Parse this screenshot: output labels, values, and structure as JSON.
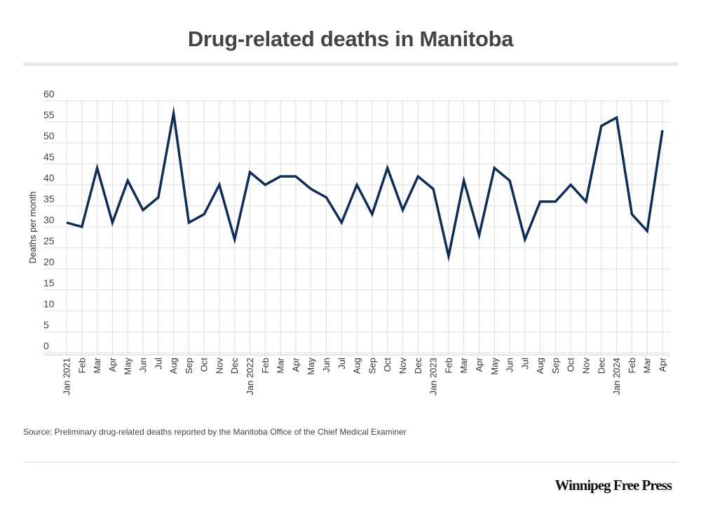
{
  "title": "Drug-related deaths in Manitoba",
  "source": "Source: Preliminary drug-related deaths reported by the Manitoba Office of the Chief Medical Examiner",
  "logo": "Winnipeg Free Press",
  "colors": {
    "line": "#0d2c56",
    "grid": "#dddddd",
    "text": "#444444"
  },
  "chart_data": {
    "type": "line",
    "title": "Drug-related deaths in Manitoba",
    "xlabel": "",
    "ylabel": "Deaths per month",
    "ylim": [
      0,
      60
    ],
    "yticks": [
      "0",
      "5",
      "10",
      "15",
      "20",
      "25",
      "30",
      "35",
      "40",
      "45",
      "50",
      "55",
      "60"
    ],
    "grid": true,
    "categories": [
      "Jan 2021",
      "Feb",
      "Mar",
      "Apr",
      "May",
      "Jun",
      "Jul",
      "Aug",
      "Sep",
      "Oct",
      "Nov",
      "Dec",
      "Jan 2022",
      "Feb",
      "Mar",
      "Apr",
      "May",
      "Jun",
      "Jul",
      "Aug",
      "Sep",
      "Oct",
      "Nov",
      "Dec",
      "Jan 2023",
      "Feb",
      "Mar",
      "Apr",
      "May",
      "Jun",
      "Jul",
      "Aug",
      "Sep",
      "Oct",
      "Nov",
      "Dec",
      "Jan 2024",
      "Feb",
      "Mar",
      "Apr"
    ],
    "series": [
      {
        "name": "Deaths per month",
        "values": [
          31,
          30,
          44,
          31,
          41,
          34,
          37,
          57,
          31,
          33,
          40,
          27,
          43,
          40,
          42,
          42,
          39,
          37,
          31,
          40,
          33,
          44,
          34,
          42,
          39,
          23,
          41,
          28,
          44,
          41,
          27,
          36,
          36,
          40,
          36,
          54,
          56,
          33,
          29,
          53
        ]
      }
    ]
  }
}
